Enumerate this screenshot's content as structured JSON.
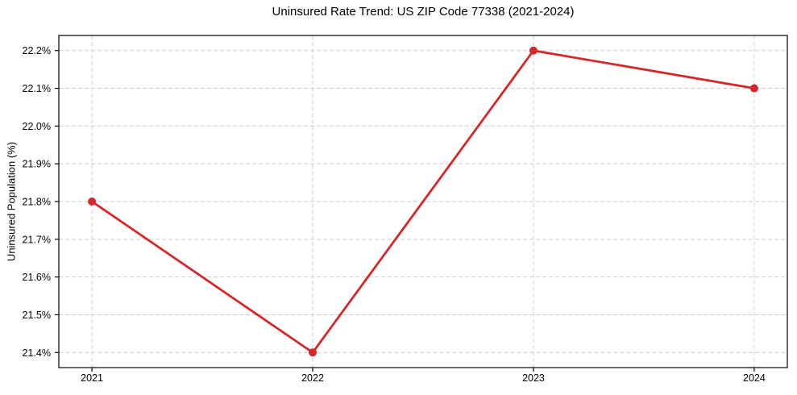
{
  "chart_data": {
    "type": "line",
    "title": "Uninsured Rate Trend: US ZIP Code 77338 (2021-2024)",
    "xlabel": "",
    "ylabel": "Uninsured Population (%)",
    "x": [
      2021,
      2022,
      2023,
      2024
    ],
    "xtick_labels": [
      "2021",
      "2022",
      "2023",
      "2024"
    ],
    "series": [
      {
        "name": "Uninsured rate",
        "values": [
          21.8,
          21.4,
          22.2,
          22.1
        ]
      }
    ],
    "yticks": [
      21.4,
      21.5,
      21.6,
      21.7,
      21.8,
      21.9,
      22.0,
      22.1,
      22.2
    ],
    "ytick_labels": [
      "21.4%",
      "21.5%",
      "21.6%",
      "21.7%",
      "21.8%",
      "21.9%",
      "22.0%",
      "22.1%",
      "22.2%"
    ],
    "xlim": [
      2020.85,
      2024.15
    ],
    "ylim": [
      21.36,
      22.24
    ],
    "grid": true,
    "legend": false,
    "colors": {
      "line": "#d62728",
      "marker": "#d62728",
      "grid": "#cccccc",
      "axis": "#000000",
      "text": "#000000",
      "background": "#ffffff"
    }
  }
}
